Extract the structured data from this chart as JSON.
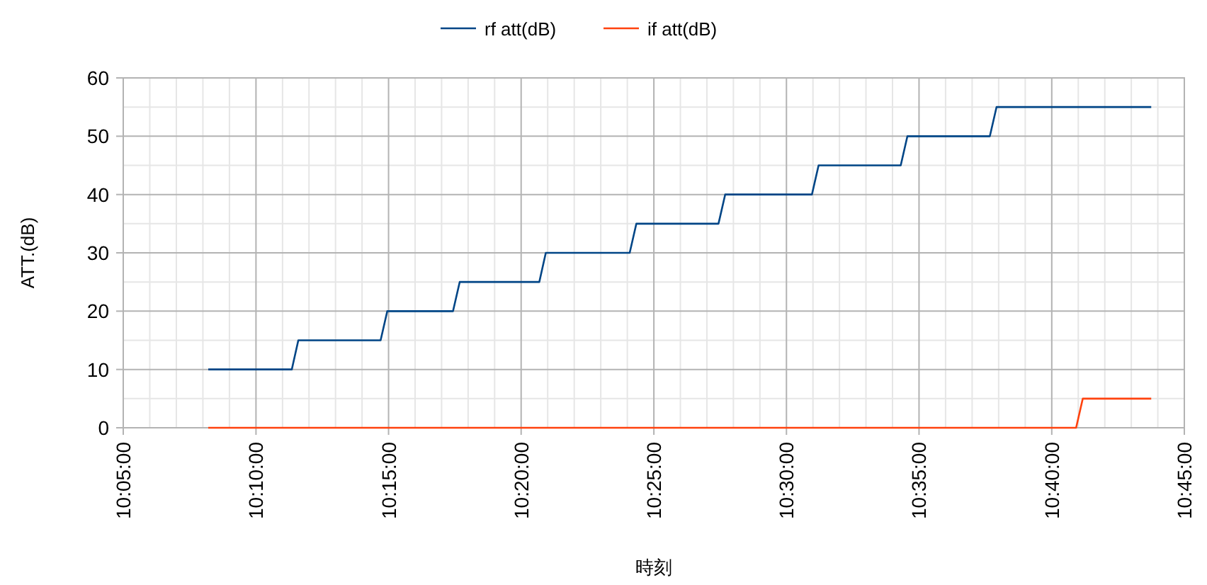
{
  "chart_data": {
    "type": "line",
    "xlabel": "時刻",
    "ylabel": "ATT.(dB)",
    "series": [
      {
        "name": "rf att(dB)",
        "color": "#004586",
        "x": [
          10.1367,
          10.1892,
          10.1933,
          10.245,
          10.2492,
          10.2905,
          10.2947,
          10.3447,
          10.3488,
          10.4015,
          10.4057,
          10.4573,
          10.4615,
          10.516,
          10.5202,
          10.5718,
          10.576,
          10.6278,
          10.632,
          10.7292
        ],
        "values": [
          10,
          10,
          15,
          15,
          20,
          20,
          25,
          25,
          30,
          30,
          35,
          35,
          40,
          40,
          45,
          45,
          50,
          50,
          55,
          55
        ]
      },
      {
        "name": "if att(dB)",
        "color": "#ff420e",
        "x": [
          10.1367,
          10.682,
          10.6862,
          10.7292
        ],
        "values": [
          0,
          0,
          5,
          5
        ]
      }
    ],
    "xlim": [
      10.0833,
      10.75
    ],
    "xticks": [
      {
        "value": 10.0833,
        "label": "10:05:00"
      },
      {
        "value": 10.1667,
        "label": "10:10:00"
      },
      {
        "value": 10.25,
        "label": "10:15:00"
      },
      {
        "value": 10.3333,
        "label": "10:20:00"
      },
      {
        "value": 10.4167,
        "label": "10:25:00"
      },
      {
        "value": 10.5,
        "label": "10:30:00"
      },
      {
        "value": 10.5833,
        "label": "10:35:00"
      },
      {
        "value": 10.6667,
        "label": "10:40:00"
      },
      {
        "value": 10.75,
        "label": "10:45:00"
      }
    ],
    "ylim": [
      0,
      60
    ],
    "yticks": [
      0,
      10,
      20,
      30,
      40,
      50,
      60
    ],
    "grid": true,
    "legend": "top",
    "marker": "none",
    "line_style": "solid"
  }
}
